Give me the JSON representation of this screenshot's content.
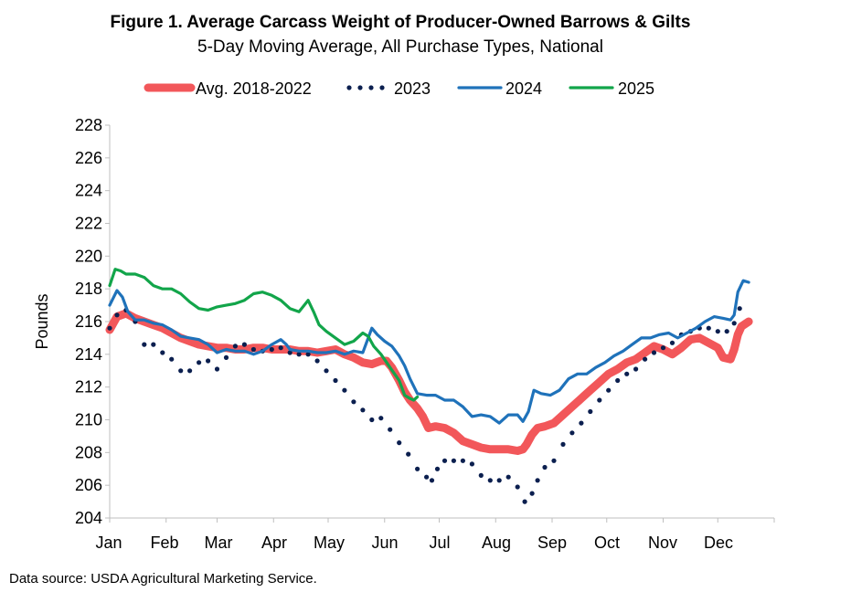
{
  "chart_data": {
    "type": "line",
    "title": "Figure 1. Average Carcass Weight of Producer-Owned Barrows & Gilts",
    "subtitle": "5-Day Moving Average, All Purchase Types, National",
    "ylabel": "Pounds",
    "xlabel": "",
    "ylim": [
      204,
      228
    ],
    "yticks": [
      204,
      206,
      208,
      210,
      212,
      214,
      216,
      218,
      220,
      222,
      224,
      226,
      228
    ],
    "months": [
      "Jan",
      "Feb",
      "Mar",
      "Apr",
      "May",
      "Jun",
      "Jul",
      "Aug",
      "Sep",
      "Oct",
      "Nov",
      "Dec"
    ],
    "grid": false,
    "legend_position": "top",
    "source_note": "Data source: USDA Agricultural Marketing Service.",
    "series": [
      {
        "name": "Avg. 2018-2022",
        "color": "#F2575A",
        "style": "thick",
        "points": [
          [
            1,
            215.5
          ],
          [
            5,
            216.3
          ],
          [
            10,
            216.5
          ],
          [
            15,
            216.2
          ],
          [
            20,
            216.0
          ],
          [
            25,
            215.8
          ],
          [
            30,
            215.6
          ],
          [
            35,
            215.3
          ],
          [
            40,
            215.0
          ],
          [
            45,
            214.8
          ],
          [
            50,
            214.6
          ],
          [
            55,
            214.5
          ],
          [
            60,
            214.4
          ],
          [
            65,
            214.4
          ],
          [
            70,
            214.3
          ],
          [
            75,
            214.3
          ],
          [
            80,
            214.4
          ],
          [
            85,
            214.4
          ],
          [
            90,
            214.3
          ],
          [
            95,
            214.3
          ],
          [
            100,
            214.3
          ],
          [
            105,
            214.2
          ],
          [
            110,
            214.2
          ],
          [
            115,
            214.1
          ],
          [
            120,
            214.2
          ],
          [
            125,
            214.3
          ],
          [
            130,
            214.0
          ],
          [
            135,
            213.8
          ],
          [
            140,
            213.5
          ],
          [
            145,
            213.4
          ],
          [
            150,
            213.6
          ],
          [
            153,
            213.6
          ],
          [
            156,
            213.2
          ],
          [
            160,
            212.4
          ],
          [
            163,
            211.7
          ],
          [
            166,
            211.2
          ],
          [
            170,
            210.7
          ],
          [
            173,
            210.2
          ],
          [
            176,
            209.5
          ],
          [
            180,
            209.6
          ],
          [
            185,
            209.5
          ],
          [
            190,
            209.2
          ],
          [
            195,
            208.7
          ],
          [
            200,
            208.5
          ],
          [
            205,
            208.3
          ],
          [
            210,
            208.2
          ],
          [
            215,
            208.2
          ],
          [
            220,
            208.2
          ],
          [
            225,
            208.1
          ],
          [
            228,
            208.2
          ],
          [
            230,
            208.5
          ],
          [
            233,
            209.1
          ],
          [
            236,
            209.5
          ],
          [
            240,
            209.6
          ],
          [
            245,
            209.8
          ],
          [
            250,
            210.3
          ],
          [
            255,
            210.8
          ],
          [
            260,
            211.3
          ],
          [
            265,
            211.8
          ],
          [
            270,
            212.3
          ],
          [
            275,
            212.8
          ],
          [
            280,
            213.1
          ],
          [
            285,
            213.5
          ],
          [
            290,
            213.7
          ],
          [
            295,
            214.1
          ],
          [
            300,
            214.5
          ],
          [
            305,
            214.3
          ],
          [
            310,
            214.0
          ],
          [
            315,
            214.4
          ],
          [
            320,
            214.9
          ],
          [
            325,
            215.0
          ],
          [
            330,
            214.7
          ],
          [
            335,
            214.4
          ],
          [
            338,
            213.8
          ],
          [
            342,
            213.7
          ],
          [
            344,
            214.3
          ],
          [
            346,
            215.2
          ],
          [
            348,
            215.7
          ],
          [
            352,
            216.0
          ]
        ]
      },
      {
        "name": "2023",
        "color": "#0B1F4F",
        "style": "dotted",
        "points": [
          [
            1,
            215.6
          ],
          [
            5,
            216.4
          ],
          [
            10,
            216.7
          ],
          [
            15,
            216.0
          ],
          [
            20,
            214.6
          ],
          [
            25,
            214.6
          ],
          [
            30,
            214.1
          ],
          [
            35,
            213.7
          ],
          [
            40,
            213.0
          ],
          [
            45,
            213.0
          ],
          [
            50,
            213.5
          ],
          [
            55,
            213.6
          ],
          [
            60,
            213.1
          ],
          [
            65,
            213.8
          ],
          [
            70,
            214.5
          ],
          [
            75,
            214.6
          ],
          [
            80,
            214.3
          ],
          [
            85,
            214.2
          ],
          [
            90,
            214.3
          ],
          [
            95,
            214.4
          ],
          [
            100,
            214.1
          ],
          [
            105,
            214.0
          ],
          [
            110,
            214.0
          ],
          [
            115,
            213.6
          ],
          [
            120,
            213.0
          ],
          [
            125,
            212.4
          ],
          [
            130,
            211.8
          ],
          [
            135,
            211.1
          ],
          [
            140,
            210.6
          ],
          [
            145,
            210.0
          ],
          [
            150,
            210.1
          ],
          [
            155,
            209.4
          ],
          [
            160,
            208.6
          ],
          [
            165,
            207.9
          ],
          [
            170,
            207.0
          ],
          [
            175,
            206.5
          ],
          [
            178,
            206.3
          ],
          [
            181,
            207.0
          ],
          [
            185,
            207.5
          ],
          [
            190,
            207.5
          ],
          [
            195,
            207.5
          ],
          [
            200,
            207.3
          ],
          [
            205,
            206.6
          ],
          [
            210,
            206.3
          ],
          [
            215,
            206.3
          ],
          [
            220,
            206.5
          ],
          [
            225,
            205.9
          ],
          [
            229,
            205.0
          ],
          [
            233,
            205.5
          ],
          [
            236,
            206.3
          ],
          [
            240,
            207.1
          ],
          [
            245,
            207.5
          ],
          [
            250,
            208.5
          ],
          [
            255,
            209.2
          ],
          [
            260,
            209.8
          ],
          [
            265,
            210.5
          ],
          [
            270,
            211.2
          ],
          [
            275,
            211.8
          ],
          [
            280,
            212.4
          ],
          [
            285,
            212.8
          ],
          [
            290,
            213.1
          ],
          [
            295,
            213.7
          ],
          [
            300,
            214.1
          ],
          [
            305,
            214.4
          ],
          [
            310,
            214.7
          ],
          [
            315,
            215.2
          ],
          [
            320,
            215.4
          ],
          [
            325,
            215.6
          ],
          [
            330,
            215.6
          ],
          [
            335,
            215.4
          ],
          [
            340,
            215.4
          ],
          [
            344,
            215.9
          ],
          [
            347,
            216.8
          ],
          [
            350,
            217.2
          ]
        ]
      },
      {
        "name": "2024",
        "color": "#1F72BA",
        "style": "solid",
        "points": [
          [
            1,
            217.0
          ],
          [
            5,
            217.9
          ],
          [
            8,
            217.5
          ],
          [
            11,
            216.6
          ],
          [
            15,
            216.1
          ],
          [
            20,
            216.1
          ],
          [
            25,
            215.9
          ],
          [
            30,
            215.8
          ],
          [
            35,
            215.5
          ],
          [
            40,
            215.1
          ],
          [
            45,
            215.0
          ],
          [
            50,
            214.9
          ],
          [
            55,
            214.6
          ],
          [
            60,
            214.1
          ],
          [
            65,
            214.3
          ],
          [
            70,
            214.2
          ],
          [
            75,
            214.2
          ],
          [
            80,
            214.0
          ],
          [
            85,
            214.2
          ],
          [
            90,
            214.6
          ],
          [
            95,
            214.9
          ],
          [
            98,
            214.6
          ],
          [
            100,
            214.3
          ],
          [
            105,
            214.2
          ],
          [
            110,
            214.2
          ],
          [
            115,
            214.1
          ],
          [
            120,
            214.1
          ],
          [
            125,
            214.2
          ],
          [
            130,
            214.0
          ],
          [
            135,
            214.2
          ],
          [
            140,
            214.1
          ],
          [
            145,
            215.6
          ],
          [
            148,
            215.2
          ],
          [
            152,
            214.8
          ],
          [
            156,
            214.5
          ],
          [
            160,
            213.9
          ],
          [
            163,
            213.3
          ],
          [
            166,
            212.5
          ],
          [
            170,
            211.6
          ],
          [
            175,
            211.5
          ],
          [
            180,
            211.5
          ],
          [
            185,
            211.2
          ],
          [
            190,
            211.2
          ],
          [
            195,
            210.8
          ],
          [
            200,
            210.2
          ],
          [
            205,
            210.3
          ],
          [
            210,
            210.2
          ],
          [
            215,
            209.8
          ],
          [
            220,
            210.3
          ],
          [
            225,
            210.3
          ],
          [
            228,
            209.9
          ],
          [
            231,
            210.5
          ],
          [
            234,
            211.8
          ],
          [
            238,
            211.6
          ],
          [
            243,
            211.5
          ],
          [
            248,
            211.8
          ],
          [
            253,
            212.5
          ],
          [
            258,
            212.8
          ],
          [
            263,
            212.8
          ],
          [
            268,
            213.2
          ],
          [
            273,
            213.5
          ],
          [
            278,
            213.9
          ],
          [
            283,
            214.2
          ],
          [
            288,
            214.6
          ],
          [
            293,
            215.0
          ],
          [
            298,
            215.0
          ],
          [
            303,
            215.2
          ],
          [
            308,
            215.3
          ],
          [
            313,
            215.0
          ],
          [
            318,
            215.3
          ],
          [
            323,
            215.6
          ],
          [
            328,
            216.0
          ],
          [
            333,
            216.3
          ],
          [
            338,
            216.2
          ],
          [
            342,
            216.1
          ],
          [
            344,
            216.4
          ],
          [
            346,
            217.8
          ],
          [
            349,
            218.5
          ],
          [
            352,
            218.4
          ]
        ]
      },
      {
        "name": "2025",
        "color": "#12A54A",
        "style": "solid",
        "points": [
          [
            1,
            218.2
          ],
          [
            4,
            219.2
          ],
          [
            7,
            219.1
          ],
          [
            10,
            218.9
          ],
          [
            15,
            218.9
          ],
          [
            20,
            218.7
          ],
          [
            25,
            218.2
          ],
          [
            30,
            218.0
          ],
          [
            35,
            218.0
          ],
          [
            40,
            217.7
          ],
          [
            45,
            217.2
          ],
          [
            50,
            216.8
          ],
          [
            55,
            216.7
          ],
          [
            60,
            216.9
          ],
          [
            65,
            217.0
          ],
          [
            70,
            217.1
          ],
          [
            75,
            217.3
          ],
          [
            80,
            217.7
          ],
          [
            85,
            217.8
          ],
          [
            90,
            217.6
          ],
          [
            95,
            217.3
          ],
          [
            100,
            216.8
          ],
          [
            105,
            216.6
          ],
          [
            110,
            217.3
          ],
          [
            113,
            216.6
          ],
          [
            116,
            215.8
          ],
          [
            120,
            215.4
          ],
          [
            125,
            215.0
          ],
          [
            130,
            214.6
          ],
          [
            135,
            214.8
          ],
          [
            140,
            215.3
          ],
          [
            143,
            215.1
          ],
          [
            146,
            214.5
          ],
          [
            150,
            214.0
          ],
          [
            155,
            213.2
          ],
          [
            160,
            212.4
          ],
          [
            163,
            211.5
          ],
          [
            166,
            211.3
          ],
          [
            168,
            211.2
          ],
          [
            170,
            211.4
          ]
        ]
      }
    ]
  }
}
